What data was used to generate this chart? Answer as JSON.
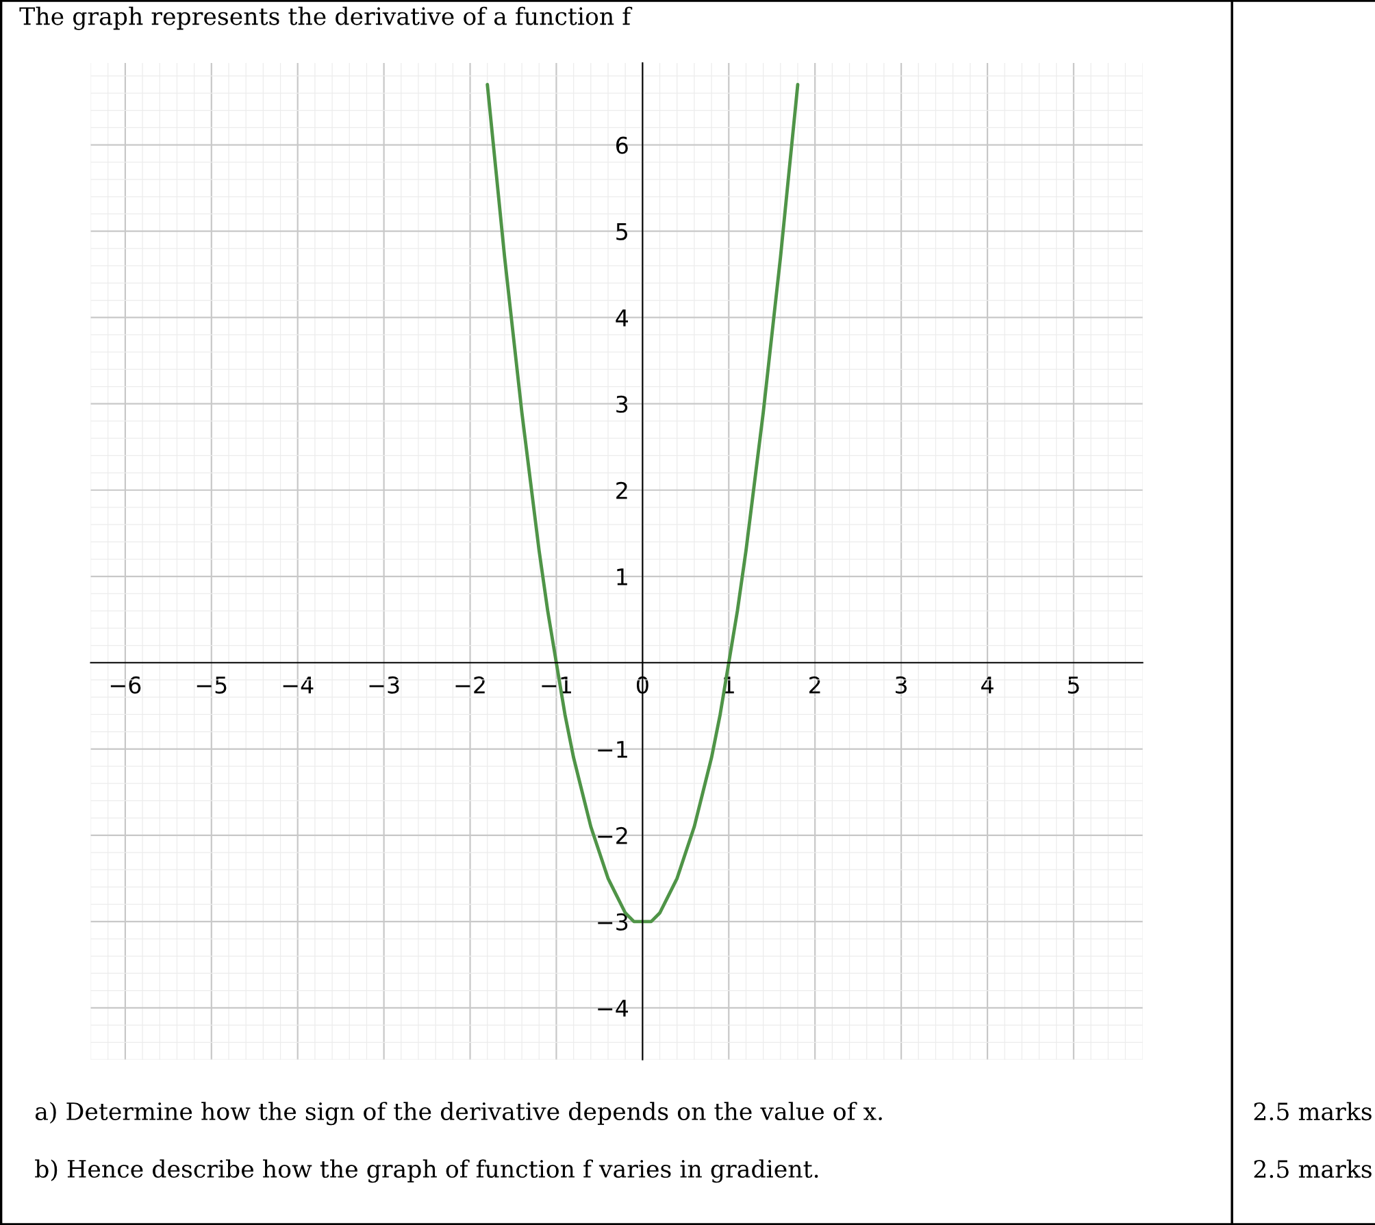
{
  "chart_data": {
    "type": "line",
    "title": "The graph represents the derivative of a function f",
    "x": [
      -1.8,
      -1.7,
      -1.6,
      -1.5,
      -1.4,
      -1.3,
      -1.2,
      -1.1,
      -1.0,
      -0.9,
      -0.8,
      -0.7,
      -0.6,
      -0.5,
      -0.4,
      -0.3,
      -0.2,
      -0.1,
      0,
      0.1,
      0.2,
      0.3,
      0.4,
      0.5,
      0.6,
      0.7,
      0.8,
      0.9,
      1.0,
      1.1,
      1.2,
      1.3,
      1.4,
      1.5,
      1.6,
      1.7,
      1.8
    ],
    "series": [
      {
        "color": "#4f9447",
        "values": [
          6.7,
          5.7,
          4.7,
          3.8,
          2.9,
          2.1,
          1.3,
          0.6,
          0,
          -0.6,
          -1.1,
          -1.5,
          -1.9,
          -2.2,
          -2.5,
          -2.7,
          -2.9,
          -3.0,
          -3,
          -3.0,
          -2.9,
          -2.7,
          -2.5,
          -2.2,
          -1.9,
          -1.5,
          -1.1,
          -0.6,
          0,
          0.6,
          1.3,
          2.1,
          2.9,
          3.8,
          4.7,
          5.7,
          6.7
        ]
      }
    ],
    "xlim": [
      -6.4,
      5.8
    ],
    "ylim": [
      -4.6,
      6.95
    ],
    "xticks": [
      {
        "value": -6,
        "label": "−6"
      },
      {
        "value": -5,
        "label": "−5"
      },
      {
        "value": -4,
        "label": "−4"
      },
      {
        "value": -3,
        "label": "−3"
      },
      {
        "value": -2,
        "label": "−2"
      },
      {
        "value": -1,
        "label": "−1"
      },
      0,
      1,
      2,
      3,
      4,
      5
    ],
    "yticks": [
      {
        "value": -4,
        "label": "−4"
      },
      {
        "value": -3,
        "label": "−3"
      },
      {
        "value": -2,
        "label": "−2"
      },
      {
        "value": -1,
        "label": "−1"
      },
      1,
      2,
      3,
      4,
      5,
      6
    ],
    "grid": true,
    "marker": "none",
    "line_style": "solid",
    "annotations": [
      "a) Determine how the sign of the derivative depends on the value of x.",
      "2.5 marks",
      "b) Hence describe how the graph of function f varies in gradient.",
      "2.5 marks"
    ]
  }
}
